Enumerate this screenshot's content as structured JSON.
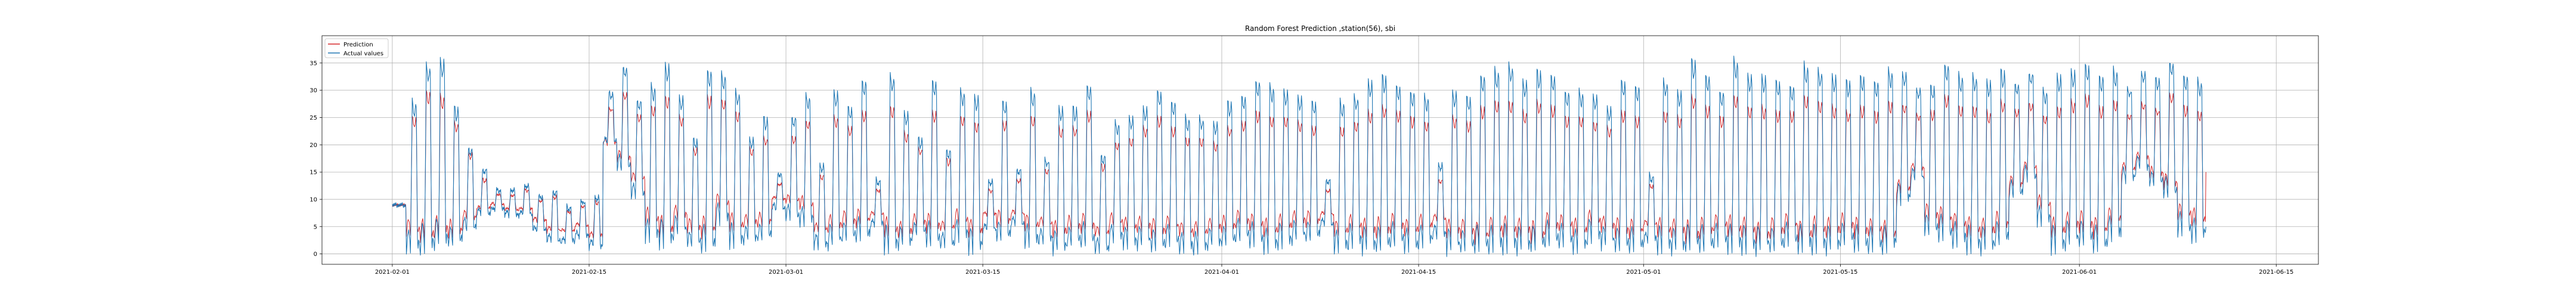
{
  "chart_data": {
    "type": "line",
    "title": "Random Forest Prediction ,station(56), sbi",
    "xlabel": "",
    "ylabel": "",
    "x_range": [
      "2021-01-27",
      "2021-06-18"
    ],
    "x_data_range": [
      "2021-02-01",
      "2021-06-10"
    ],
    "ylim": [
      -1.9,
      40.0
    ],
    "x_ticks": [
      "2021-02-01",
      "2021-02-15",
      "2021-03-01",
      "2021-03-15",
      "2021-04-01",
      "2021-04-15",
      "2021-05-01",
      "2021-05-15",
      "2021-06-01",
      "2021-06-15"
    ],
    "y_ticks": [
      0,
      5,
      10,
      15,
      20,
      25,
      30,
      35
    ],
    "grid": true,
    "legend_position": "top-left",
    "series": [
      {
        "name": "Prediction",
        "color": "#d62728",
        "daily_peaks": [
          9,
          26,
          31,
          30,
          25,
          19,
          14,
          11,
          11,
          12,
          10,
          11,
          8,
          9,
          10,
          27,
          30,
          26,
          28,
          30,
          26,
          20,
          30,
          29,
          27,
          20,
          22,
          13,
          22,
          25,
          15,
          26,
          24,
          27,
          12,
          28,
          23,
          20,
          27,
          18,
          26,
          25,
          12,
          25,
          14,
          26,
          16,
          24,
          24,
          27,
          17,
          21,
          22,
          24,
          26,
          24,
          22,
          22,
          21,
          24,
          25,
          27,
          26,
          26,
          25,
          24,
          12,
          24,
          25,
          27,
          28,
          27,
          26,
          25,
          14,
          26,
          25,
          28,
          29,
          29,
          27,
          29,
          28,
          26,
          26,
          25,
          24,
          27,
          26,
          13,
          27,
          26,
          30,
          28,
          26,
          30,
          28,
          28,
          27,
          27,
          30,
          29,
          28,
          27,
          28,
          27,
          29,
          28,
          26,
          27,
          30,
          28,
          28,
          27,
          29,
          27,
          28,
          26,
          28,
          29,
          30,
          28,
          29,
          26,
          28,
          27,
          30,
          28,
          27,
          29,
          29,
          29,
          29,
          28
        ],
        "daily_troughs": [
          9,
          3,
          2,
          3,
          3,
          6,
          8,
          9,
          8,
          8,
          6,
          4,
          4,
          5,
          3,
          20,
          17,
          13,
          5,
          3,
          6,
          4,
          3,
          8,
          4,
          5,
          5,
          10,
          9,
          8,
          4,
          4,
          5,
          5,
          7,
          3,
          3,
          5,
          4,
          4,
          5,
          3,
          7,
          5,
          7,
          4,
          5,
          3,
          4,
          4,
          3,
          5,
          4,
          4,
          3,
          4,
          3,
          3,
          4,
          4,
          5,
          4,
          3,
          4,
          5,
          5,
          7,
          3,
          4,
          3,
          3,
          4,
          3,
          4,
          6,
          3,
          3,
          2,
          3,
          3,
          3,
          2,
          4,
          4,
          3,
          5,
          4,
          3,
          3,
          5,
          3,
          3,
          2,
          3,
          4,
          3,
          3,
          2,
          3,
          4,
          2,
          3,
          3,
          4,
          3,
          3,
          2,
          11,
          15,
          6,
          5,
          4,
          3,
          3,
          4,
          12,
          15,
          8,
          3,
          4,
          4,
          3,
          5,
          15,
          17,
          14,
          12,
          6,
          5,
          6,
          4,
          3,
          7,
          8
        ]
      },
      {
        "name": "Actual values",
        "color": "#1f77b4",
        "daily_peaks": [
          9,
          29,
          36,
          37,
          28,
          20,
          16,
          12,
          12,
          13,
          11,
          12,
          9,
          10,
          11,
          30,
          35,
          29,
          32,
          36,
          30,
          22,
          35,
          34,
          31,
          22,
          26,
          15,
          26,
          30,
          17,
          31,
          28,
          33,
          14,
          34,
          27,
          22,
          33,
          20,
          31,
          30,
          14,
          29,
          16,
          31,
          18,
          28,
          28,
          32,
          19,
          25,
          26,
          28,
          31,
          29,
          26,
          26,
          25,
          29,
          30,
          33,
          32,
          31,
          30,
          29,
          14,
          29,
          30,
          33,
          34,
          32,
          31,
          30,
          17,
          31,
          30,
          34,
          35,
          36,
          33,
          35,
          34,
          31,
          31,
          30,
          28,
          33,
          32,
          15,
          33,
          31,
          37,
          34,
          31,
          37,
          34,
          34,
          33,
          32,
          36,
          35,
          34,
          33,
          34,
          33,
          35,
          34,
          31,
          32,
          36,
          34,
          34,
          33,
          35,
          32,
          34,
          31,
          34,
          35,
          36,
          34,
          35,
          31,
          34,
          33,
          36,
          34,
          33,
          35,
          35,
          35,
          34,
          33
        ],
        "daily_troughs": [
          9,
          0,
          0,
          1,
          1,
          4,
          7,
          8,
          7,
          7,
          4,
          2,
          2,
          3,
          1,
          20,
          15,
          10,
          2,
          1,
          3,
          1,
          0,
          5,
          1,
          2,
          2,
          8,
          6,
          5,
          1,
          1,
          2,
          2,
          5,
          0,
          1,
          3,
          1,
          1,
          2,
          0,
          4,
          2,
          5,
          1,
          2,
          0,
          1,
          1,
          0,
          2,
          1,
          1,
          0,
          1,
          0,
          0,
          1,
          1,
          2,
          1,
          0,
          1,
          2,
          2,
          5,
          0,
          1,
          0,
          0,
          1,
          0,
          1,
          3,
          0,
          0,
          0,
          0,
          0,
          0,
          0,
          1,
          1,
          0,
          2,
          1,
          0,
          0,
          2,
          0,
          0,
          0,
          0,
          1,
          0,
          0,
          0,
          0,
          1,
          0,
          0,
          0,
          1,
          0,
          0,
          0,
          9,
          13,
          3,
          2,
          1,
          0,
          0,
          1,
          10,
          13,
          5,
          0,
          1,
          1,
          0,
          2,
          13,
          15,
          12,
          10,
          3,
          2,
          3,
          1,
          0,
          4,
          5
        ]
      }
    ]
  }
}
